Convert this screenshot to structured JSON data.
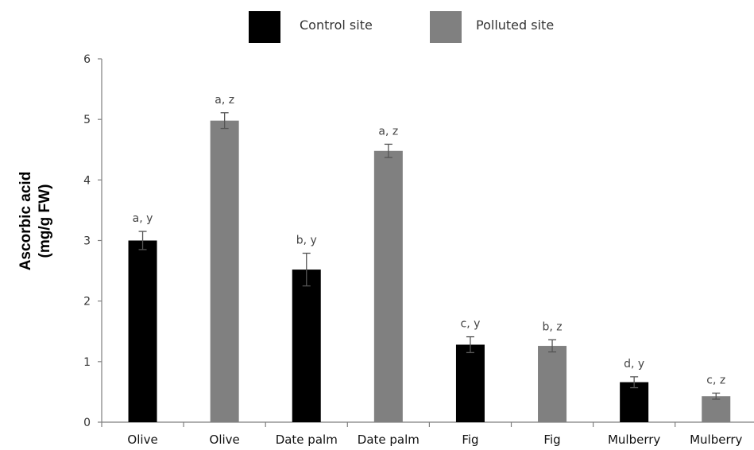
{
  "chart_data": {
    "type": "bar",
    "title": "",
    "xlabel": "",
    "ylabel": [
      "Ascorbic acid",
      "(mg/g FW)"
    ],
    "ylim": [
      0,
      6
    ],
    "yticks": [
      0,
      1,
      2,
      3,
      4,
      5,
      6
    ],
    "grid": false,
    "legend": {
      "placement": "top",
      "entries": [
        {
          "name": "Control site",
          "color": "#000000"
        },
        {
          "name": "Polluted site",
          "color": "#808080"
        }
      ]
    },
    "bars": [
      {
        "category": "Olive",
        "series": "Control site",
        "value": 3.0,
        "error": 0.15,
        "label": "a, y"
      },
      {
        "category": "Olive",
        "series": "Polluted site",
        "value": 4.98,
        "error": 0.13,
        "label": "a, z"
      },
      {
        "category": "Date palm",
        "series": "Control site",
        "value": 2.52,
        "error": 0.27,
        "label": "b, y"
      },
      {
        "category": "Date palm",
        "series": "Polluted site",
        "value": 4.48,
        "error": 0.11,
        "label": "a, z"
      },
      {
        "category": "Fig",
        "series": "Control site",
        "value": 1.28,
        "error": 0.13,
        "label": "c, y"
      },
      {
        "category": "Fig",
        "series": "Polluted site",
        "value": 1.26,
        "error": 0.1,
        "label": "b, z"
      },
      {
        "category": "Mulberry",
        "series": "Control site",
        "value": 0.66,
        "error": 0.09,
        "label": "d, y"
      },
      {
        "category": "Mulberry",
        "series": "Polluted site",
        "value": 0.43,
        "error": 0.05,
        "label": "c, z"
      }
    ]
  }
}
